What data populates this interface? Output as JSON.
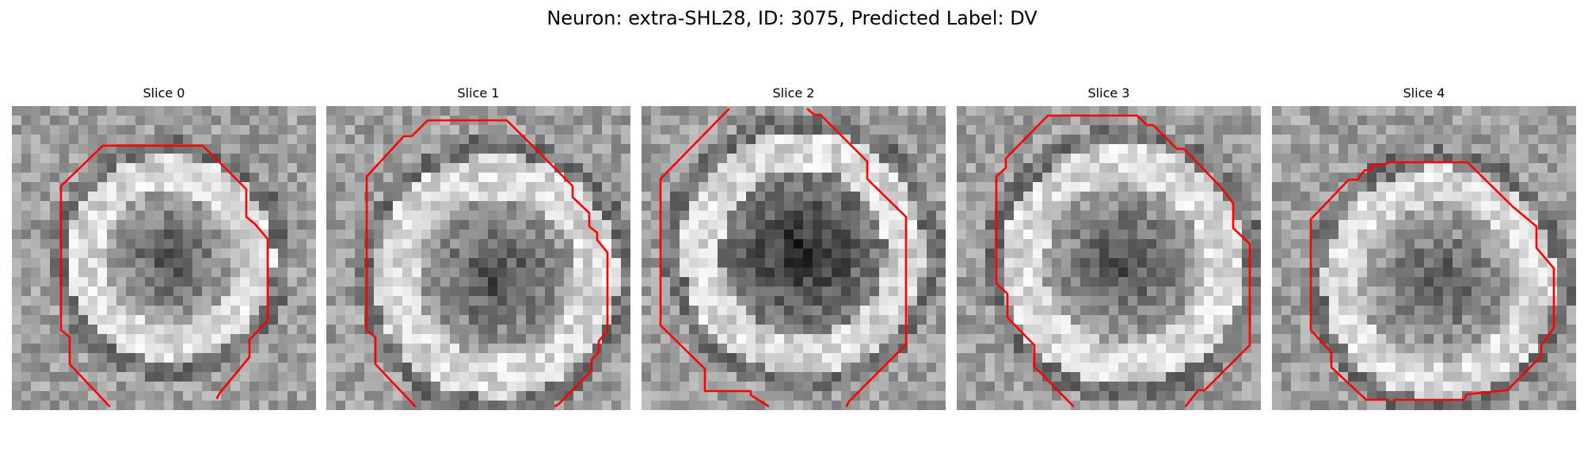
{
  "figure": {
    "title": "Neuron: extra-SHL28, ID: 3075, Predicted Label: DV",
    "contour_color": "#ff0000"
  },
  "slices": [
    {
      "title": "Slice 0"
    },
    {
      "title": "Slice 1"
    },
    {
      "title": "Slice 2"
    },
    {
      "title": "Slice 3"
    },
    {
      "title": "Slice 4"
    }
  ]
}
